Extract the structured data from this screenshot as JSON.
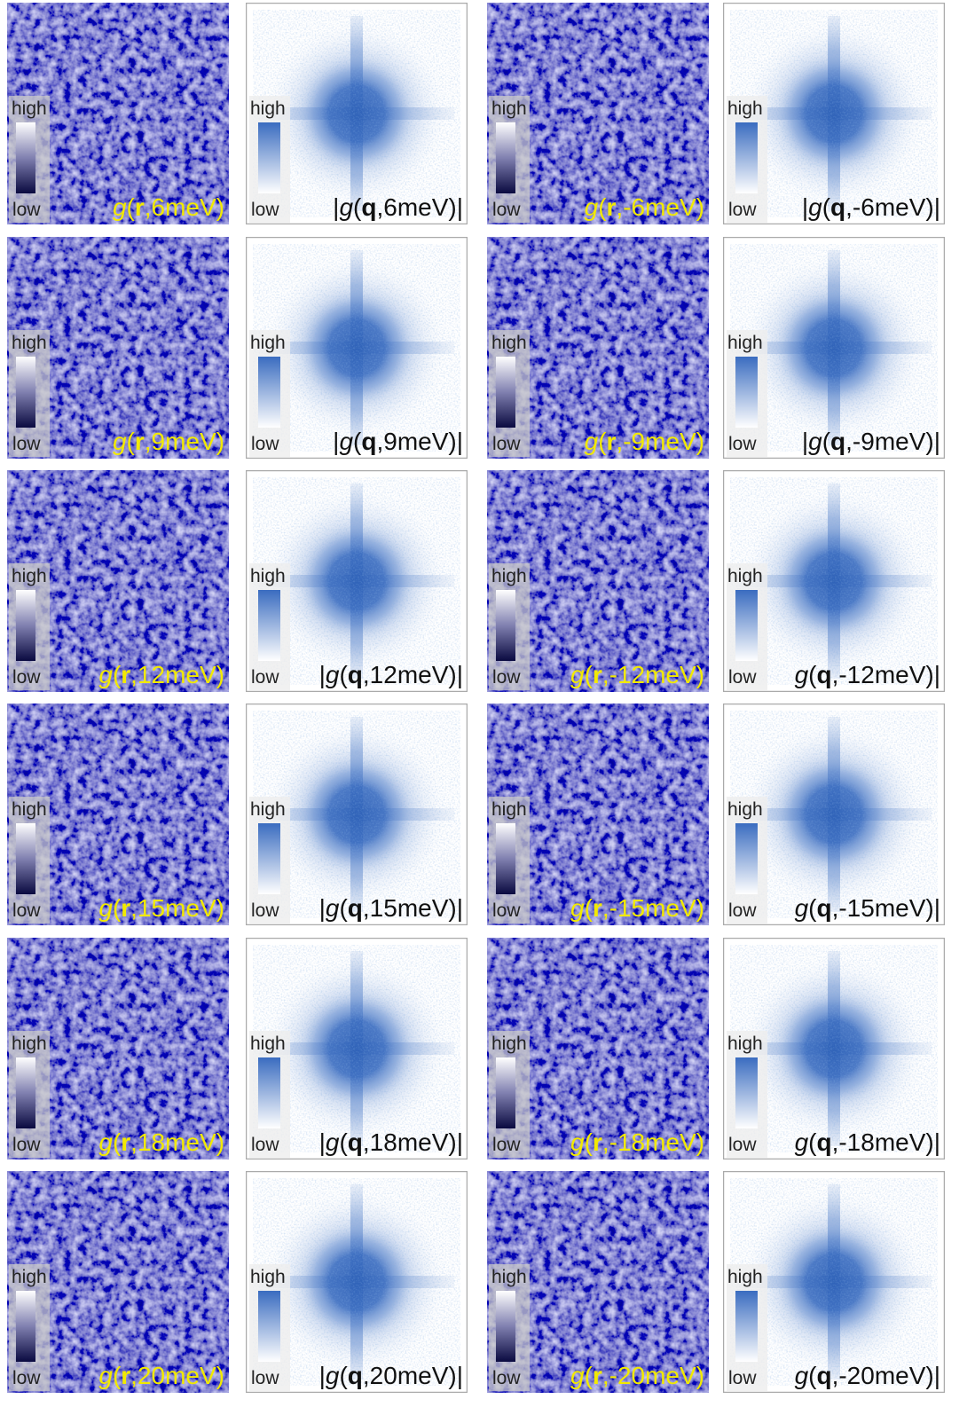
{
  "panels": [
    [
      {
        "high": "high",
        "low": "low",
        "label": [
          "g",
          "(",
          "r",
          ",6meV)"
        ]
      },
      {
        "high": "high",
        "low": "low",
        "label": [
          "|",
          "g",
          "(",
          "q",
          ",6meV)|"
        ]
      },
      {
        "high": "high",
        "low": "low",
        "label": [
          "g",
          "(",
          "r",
          ",-6meV)"
        ]
      },
      {
        "high": "high",
        "low": "low",
        "label": [
          "|",
          "g",
          "(",
          "q",
          ",-6meV)|"
        ]
      }
    ],
    [
      {
        "high": "high",
        "low": "low",
        "label": [
          "g",
          "(",
          "r",
          ",9meV)"
        ]
      },
      {
        "high": "high",
        "low": "low",
        "label": [
          "|",
          "g",
          "(",
          "q",
          ",9meV)|"
        ]
      },
      {
        "high": "high",
        "low": "low",
        "label": [
          "g",
          "(",
          "r",
          ",-9meV)"
        ]
      },
      {
        "high": "high",
        "low": "low",
        "label": [
          "|",
          "g",
          "(",
          "q",
          ",-9meV)|"
        ]
      }
    ],
    [
      {
        "high": "high",
        "low": "low",
        "label": [
          "g",
          "(",
          "r",
          ",12meV)"
        ]
      },
      {
        "high": "high",
        "low": "low",
        "label": [
          "|",
          "g",
          "(",
          "q",
          ",12meV)|"
        ]
      },
      {
        "high": "high",
        "low": "low",
        "label": [
          "g",
          "(",
          "r",
          ",-12meV)"
        ]
      },
      {
        "high": "high",
        "low": "low",
        "label": [
          "g",
          "(",
          "q",
          ",-12meV)|"
        ]
      }
    ],
    [
      {
        "high": "high",
        "low": "low",
        "label": [
          "g",
          "(",
          "r",
          ",15meV)"
        ]
      },
      {
        "high": "high",
        "low": "low",
        "label": [
          "|",
          "g",
          "(",
          "q",
          ",15meV)|"
        ]
      },
      {
        "high": "high",
        "low": "low",
        "label": [
          "g",
          "(",
          "r",
          ",-15meV)"
        ]
      },
      {
        "high": "high",
        "low": "low",
        "label": [
          "g",
          "(",
          "q",
          ",-15meV)|"
        ]
      }
    ],
    [
      {
        "high": "high",
        "low": "low",
        "label": [
          "g",
          "(",
          "r",
          ",18meV)"
        ]
      },
      {
        "high": "high",
        "low": "low",
        "label": [
          "|",
          "g",
          "(",
          "q",
          ",18meV)|"
        ]
      },
      {
        "high": "high",
        "low": "low",
        "label": [
          "g",
          "(",
          "r",
          ",-18meV)"
        ]
      },
      {
        "high": "high",
        "low": "low",
        "label": [
          "g",
          "(",
          "q",
          ",-18meV)|"
        ]
      }
    ],
    [
      {
        "high": "high",
        "low": "low",
        "label": [
          "g",
          "(",
          "r",
          ",20meV)"
        ]
      },
      {
        "high": "high",
        "low": "low",
        "label": [
          "|",
          "g",
          "(",
          "q",
          ",20meV)|"
        ]
      },
      {
        "high": "high",
        "low": "low",
        "label": [
          "g",
          "(",
          "r",
          ",-20meV)"
        ]
      },
      {
        "high": "high",
        "low": "low",
        "label": [
          "g",
          "(",
          "q",
          ",-20meV)|"
        ]
      }
    ]
  ]
}
